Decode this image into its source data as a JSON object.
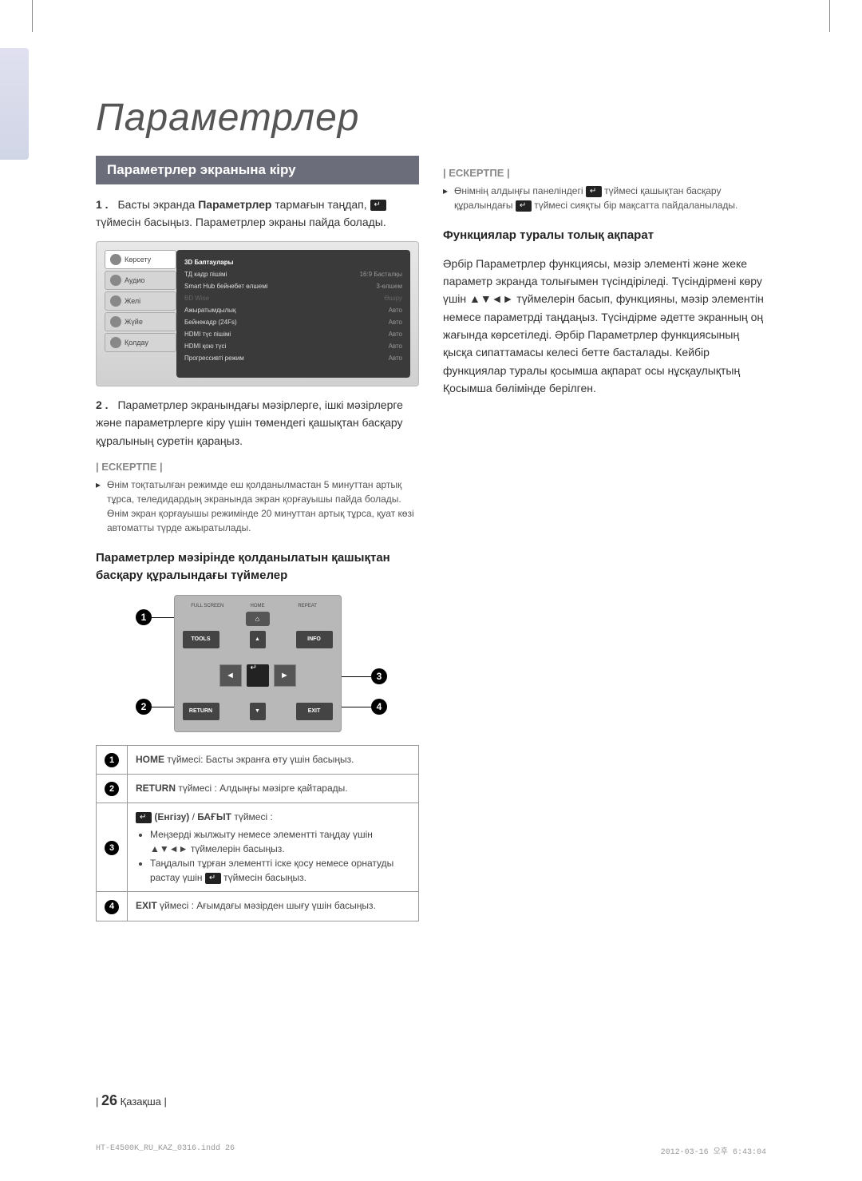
{
  "page": {
    "title": "Параметрлер",
    "section_header": "Параметрлер экранына кіру",
    "step1_num": "1 .",
    "step1_a": "Басты экранда ",
    "step1_bold": "Параметрлер",
    "step1_b": " тармағын таңдап, ",
    "step1_c": " түймесін басыңыз. Параметрлер экраны пайда болады.",
    "step2_num": "2 .",
    "step2": "Параметрлер экранындағы мәзірлерге, ішкі мәзірлерге және параметрлерге кіру үшін төмендегі қашықтан басқару құралының суретін қараңыз.",
    "note_label": "| ЕСКЕРТПЕ |",
    "note1": "Өнім тоқтатылған режимде еш қолданылмастан 5 минуттан артық тұрса, теледидардың экранында экран қорғауышы пайда болады. Өнім экран қорғауышы режимінде 20 минуттан артық тұрса, қуат көзі автоматты түрде ажыратылады.",
    "subhead1": "Параметрлер мәзірінде қолданылатын қашықтан басқару құралындағы түймелер",
    "note2_a": "Өнімнің алдыңғы панеліндегі ",
    "note2_b": " түймесі қашықтан басқару құралындағы ",
    "note2_c": " түймесі сияқты бір мақсатта пайдаланылады.",
    "subhead2": "Функциялар туралы толық ақпарат",
    "body2": "Әрбір Параметрлер функциясы, мәзір элементі және жеке параметр экранда толығымен түсіндіріледі. Түсіндірмені көру үшін ▲▼◄► түймелерін басып, функцияны, мәзір элементін немесе параметрді таңдаңыз. Түсіндірме әдетте экранның оң жағында көрсетіледі. Әрбір Параметрлер функциясының қысқа сипаттамасы келесі бетте басталады. Кейбір функциялар туралы қосымша ақпарат осы нұсқаулықтың Қосымша бөлімінде берілген.",
    "footer_page": "26",
    "footer_lang": "Қазақша",
    "print_file": "HT-E4500K_RU_KAZ_0316.indd   26",
    "print_time": "2012-03-16   오후 6:43:04"
  },
  "menu_ui": {
    "tabs": [
      "Көрсету",
      "Аудио",
      "Желі",
      "Жүйе",
      "Қолдау"
    ],
    "rows": [
      {
        "lbl": "3D Баптаулары",
        "val": "",
        "cls": "head"
      },
      {
        "lbl": "ТД кадр пішімі",
        "val": "16:9 Басталқы",
        "cls": ""
      },
      {
        "lbl": "Smart Hub бейнебет өлшемі",
        "val": "3-өлшем",
        "cls": ""
      },
      {
        "lbl": "BD Wise",
        "val": "Өшіру",
        "cls": "dim"
      },
      {
        "lbl": "Ажыратымдылық",
        "val": "Авто",
        "cls": ""
      },
      {
        "lbl": "Бейнекадр (24Fs)",
        "val": "Авто",
        "cls": ""
      },
      {
        "lbl": "HDMI түс пішімі",
        "val": "Авто",
        "cls": ""
      },
      {
        "lbl": "HDMI қою түсі",
        "val": "Авто",
        "cls": ""
      },
      {
        "lbl": "Прогрессивті режим",
        "val": "Авто",
        "cls": ""
      }
    ]
  },
  "remote": {
    "top": [
      "FULL SCREEN",
      "HOME",
      "REPEAT"
    ],
    "tools": "TOOLS",
    "info": "INFO",
    "return": "RETURN",
    "exit": "EXIT"
  },
  "table": {
    "row1_b": "HOME",
    "row1": " түймесі: Басты экранға өту үшін басыңыз.",
    "row2_b": "RETURN",
    "row2": " түймесі : Алдыңғы мәзірге қайтарады.",
    "row3_head_b1": " (Енгізу)",
    "row3_head_mid": " / ",
    "row3_head_b2": "БАҒЫТ",
    "row3_head_tail": " түймесі :",
    "row3_li1": "Меңзерді жылжыту немесе элементті таңдау үшін ▲▼◄► түймелерін басыңыз.",
    "row3_li2_a": "Таңдалып тұрған элементті іске қосу немесе орнатуды растау үшін ",
    "row3_li2_b": " түймесін басыңыз.",
    "row4_b": "EXIT",
    "row4": " үймесі : Ағымдағы мәзірден шығу үшін басыңыз."
  },
  "colors": {
    "header_bg": "#6b6d7a"
  }
}
